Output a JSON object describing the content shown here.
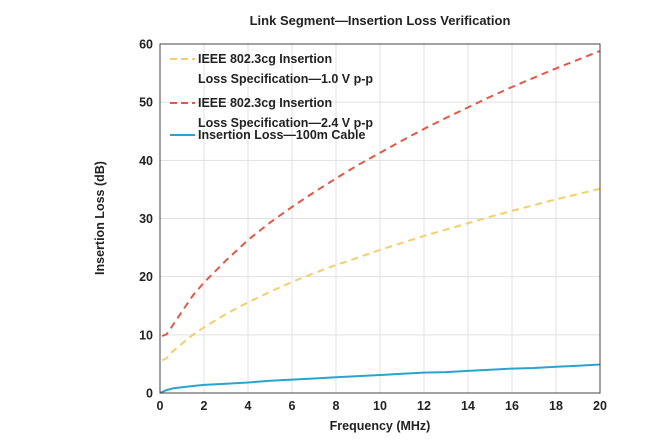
{
  "chart_data": {
    "type": "line",
    "title": "Link Segment—Insertion Loss Verification",
    "xlabel": "Frequency (MHz)",
    "ylabel": "Insertion Loss (dB)",
    "xlim": [
      0,
      20
    ],
    "ylim": [
      0,
      60
    ],
    "xticks": [
      0,
      2,
      4,
      6,
      8,
      10,
      12,
      14,
      16,
      18,
      20
    ],
    "yticks": [
      0,
      10,
      20,
      30,
      40,
      50,
      60
    ],
    "grid": true,
    "legend_position": "top-left",
    "series": [
      {
        "name_lines": [
          "IEEE 802.3cg Insertion",
          "Loss Specification—1.0 V p-p"
        ],
        "color": "#f5cd6c",
        "style": "dashed",
        "x": [
          0.1,
          0.3,
          0.5,
          1,
          1.5,
          2,
          3,
          4,
          5,
          6,
          7,
          8,
          9,
          10,
          11,
          12,
          13,
          14,
          15,
          16,
          17,
          18,
          19,
          20
        ],
        "y": [
          5.6,
          6.0,
          6.9,
          8.5,
          10.0,
          11.3,
          13.6,
          15.6,
          17.4,
          19.1,
          20.6,
          22.0,
          23.3,
          24.6,
          25.8,
          27.0,
          28.1,
          29.2,
          30.3,
          31.3,
          32.3,
          33.3,
          34.2,
          35.1
        ]
      },
      {
        "name_lines": [
          "IEEE 802.3cg Insertion",
          "Loss Specification—2.4 V p-p"
        ],
        "color": "#e2584a",
        "style": "dashed",
        "x": [
          0.1,
          0.3,
          0.5,
          1,
          1.5,
          2,
          3,
          4,
          5,
          6,
          7,
          8,
          9,
          10,
          11,
          12,
          13,
          14,
          15,
          16,
          17,
          18,
          19,
          20
        ],
        "y": [
          9.8,
          10.1,
          11.2,
          14.0,
          16.8,
          19.0,
          22.8,
          26.3,
          29.3,
          32.0,
          34.5,
          36.9,
          39.2,
          41.3,
          43.4,
          45.4,
          47.3,
          49.1,
          50.9,
          52.6,
          54.2,
          55.8,
          57.3,
          58.8
        ]
      },
      {
        "name_lines": [
          "Insertion Loss—100m Cable"
        ],
        "color": "#2aa4cf",
        "style": "solid",
        "x": [
          0,
          0.3,
          0.6,
          1,
          1.5,
          2,
          3,
          4,
          5,
          6,
          7,
          8,
          9,
          10,
          11,
          12,
          13,
          14,
          15,
          16,
          17,
          18,
          19,
          20
        ],
        "y": [
          0.0,
          0.5,
          0.8,
          1.0,
          1.2,
          1.4,
          1.6,
          1.8,
          2.1,
          2.3,
          2.5,
          2.7,
          2.9,
          3.1,
          3.3,
          3.5,
          3.6,
          3.8,
          4.0,
          4.2,
          4.3,
          4.5,
          4.7,
          4.9
        ]
      }
    ]
  }
}
